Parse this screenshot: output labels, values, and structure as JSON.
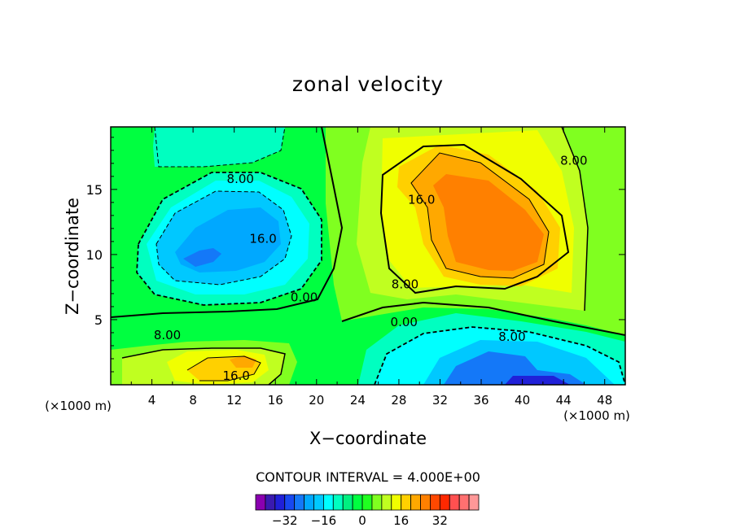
{
  "chart_data": {
    "type": "heatmap",
    "subtype": "filled-contour",
    "title": "zonal velocity",
    "xlabel": "X−coordinate",
    "ylabel": "Z−coordinate",
    "x_unit_label": "(×1000 m)",
    "x_unit_label_right": "(×1000 m)",
    "xlim": [
      0,
      50
    ],
    "ylim": [
      0,
      19.8
    ],
    "xticks": [
      4,
      8,
      12,
      16,
      20,
      24,
      28,
      32,
      36,
      40,
      44,
      48
    ],
    "yticks": [
      5,
      10,
      15
    ],
    "contour_interval_text": "CONTOUR INTERVAL = 4.000E+00",
    "contour_interval": 4,
    "negative_contours": "dashed",
    "regions": [
      {
        "type": "min",
        "x": 9.5,
        "z": 10.5,
        "value": -26,
        "note": "upper-left negative core"
      },
      {
        "type": "min",
        "x": 40.5,
        "z": 0.4,
        "value": -30,
        "note": "lower-right negative core"
      },
      {
        "type": "max",
        "x": 38,
        "z": 12.5,
        "value": 26,
        "note": "upper-right positive core"
      },
      {
        "type": "max",
        "x": 12.5,
        "z": 1.8,
        "value": 22,
        "note": "lower-left positive core"
      },
      {
        "type": "min",
        "x": 6,
        "z": 18.5,
        "value": -6,
        "note": "top-left weak negative"
      }
    ],
    "contour_labels": [
      {
        "text": "8.00",
        "x": 12.6,
        "z": 15.8
      },
      {
        "text": "16.0",
        "x": 14.8,
        "z": 11.2
      },
      {
        "text": "0.00",
        "x": 18.8,
        "z": 6.7
      },
      {
        "text": "8.00",
        "x": 5.5,
        "z": 3.8
      },
      {
        "text": "16.0",
        "x": 12.2,
        "z": 0.7
      },
      {
        "text": "16.0",
        "x": 30.2,
        "z": 14.2
      },
      {
        "text": "8.00",
        "x": 28.6,
        "z": 7.7
      },
      {
        "text": "0.00",
        "x": 28.5,
        "z": 4.8
      },
      {
        "text": "8.00",
        "x": 39,
        "z": 3.7
      },
      {
        "text": "8.00",
        "x": 45,
        "z": 17.2
      }
    ],
    "colorbar": {
      "colors": [
        "#8a00b0",
        "#3a1ab0",
        "#2020d8",
        "#1848f0",
        "#1478f8",
        "#00a8ff",
        "#00c8ff",
        "#00ffff",
        "#00ffc0",
        "#00f080",
        "#00ff40",
        "#20ff20",
        "#80ff20",
        "#c0ff20",
        "#f0ff00",
        "#ffd000",
        "#ffa800",
        "#ff8000",
        "#ff4800",
        "#ff2800",
        "#ff5050",
        "#ff7070",
        "#ff9898"
      ],
      "tick_labels": [
        "−32",
        "−16",
        "0",
        "16",
        "32"
      ],
      "tick_values": [
        -32,
        -16,
        0,
        16,
        32
      ]
    }
  }
}
